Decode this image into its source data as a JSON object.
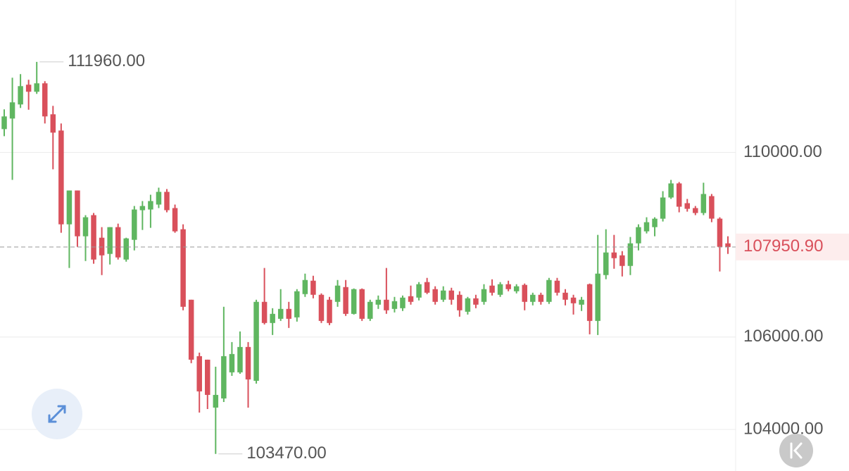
{
  "chart_data": {
    "type": "candlestick",
    "up_color": "#5fb660",
    "down_color": "#d9505b",
    "open": [
      110504,
      110733,
      111038,
      111466,
      111313,
      111496,
      110825,
      110473,
      108442,
      109175,
      108183,
      108641,
      108152,
      107801,
      108381,
      107679,
      108106,
      108748,
      108763,
      108870,
      109145,
      108794,
      108335,
      106809,
      105587,
      105511,
      104473,
      104671,
      105236,
      105236,
      105786,
      105053,
      106763,
      106305,
      106396,
      106610,
      106427,
      106931,
      107221,
      106916,
      106809,
      106763,
      107083,
      106503,
      107038,
      106396,
      106702,
      106809,
      106610,
      106625,
      106885,
      106855,
      107191,
      107038,
      106809,
      107008,
      106916,
      106549,
      106839,
      106763,
      107115,
      106916,
      107145,
      106992,
      107130,
      106763,
      106916,
      106763,
      107221,
      106961,
      106855,
      106702,
      107145,
      106350,
      107343,
      107832,
      107770,
      107541,
      108030,
      108290,
      108381,
      108564,
      109023,
      109328,
      108900,
      108794,
      108687,
      109053,
      108565,
      108030
    ],
    "high": [
      110932,
      111618,
      111695,
      111573,
      111960,
      111542,
      111008,
      110626,
      109175,
      109175,
      108641,
      108687,
      108381,
      108381,
      108457,
      108152,
      108839,
      108946,
      109083,
      109236,
      109206,
      108870,
      108442,
      106809,
      105663,
      105511,
      105358,
      106656,
      105892,
      106122,
      105892,
      106809,
      107496,
      106625,
      107038,
      106763,
      107038,
      107374,
      107328,
      106946,
      106870,
      107236,
      107236,
      107053,
      107053,
      106809,
      106900,
      107496,
      106870,
      106900,
      107115,
      107191,
      107282,
      107100,
      107100,
      107068,
      106992,
      106870,
      106916,
      107145,
      107251,
      107191,
      107221,
      107145,
      107160,
      106961,
      106961,
      107282,
      107282,
      107038,
      106916,
      106870,
      107160,
      108213,
      108335,
      108213,
      107862,
      108168,
      108442,
      108595,
      108595,
      109160,
      109404,
      109358,
      108992,
      108839,
      109343,
      109099,
      108595,
      108183
    ],
    "low": [
      110351,
      109404,
      110962,
      110924,
      111267,
      110626,
      109633,
      108259,
      107496,
      107954,
      107648,
      107588,
      107343,
      107572,
      107679,
      107633,
      107877,
      108320,
      108366,
      108794,
      108702,
      108259,
      106580,
      105434,
      104366,
      104442,
      103470,
      104595,
      105160,
      105205,
      104473,
      104992,
      106274,
      106045,
      106350,
      106198,
      106335,
      106870,
      106839,
      106305,
      106259,
      106656,
      106458,
      106488,
      106350,
      106350,
      106610,
      106503,
      106534,
      106565,
      106702,
      106794,
      106931,
      106703,
      106763,
      106702,
      106442,
      106488,
      106625,
      106702,
      106900,
      106870,
      106992,
      106946,
      106580,
      106687,
      106702,
      106718,
      106900,
      106687,
      106488,
      106565,
      106060,
      106045,
      107252,
      107480,
      107313,
      107343,
      107877,
      108244,
      108183,
      108503,
      108992,
      108702,
      108717,
      108641,
      108641,
      108488,
      107420,
      107801
    ],
    "close": [
      110779,
      111084,
      111435,
      111313,
      111496,
      110779,
      110428,
      108442,
      109175,
      108183,
      108595,
      107679,
      107770,
      108381,
      107725,
      108137,
      108763,
      108839,
      108946,
      109145,
      108748,
      108290,
      106656,
      105511,
      104824,
      104748,
      104748,
      105587,
      105633,
      105786,
      105083,
      106763,
      106305,
      106503,
      106610,
      106396,
      106992,
      107236,
      106916,
      106350,
      106305,
      107115,
      106503,
      107038,
      106396,
      106763,
      106809,
      106580,
      106778,
      106855,
      106763,
      107145,
      106961,
      106763,
      107008,
      106809,
      106580,
      106839,
      106702,
      107038,
      106961,
      107145,
      107038,
      107100,
      106763,
      106916,
      106763,
      107236,
      106961,
      106809,
      106732,
      106809,
      106350,
      107374,
      107832,
      107709,
      107541,
      108030,
      108381,
      108488,
      108564,
      109023,
      109328,
      108824,
      108778,
      108687,
      109099,
      108565,
      107954,
      107950.9
    ],
    "ylim": [
      103100,
      113300
    ],
    "yticks": [
      {
        "value": 110000,
        "label": "110000.00"
      },
      {
        "value": 106000,
        "label": "106000.00"
      },
      {
        "value": 104000,
        "label": "104000.00"
      }
    ],
    "grid": true,
    "last_price": {
      "value": 107950.9,
      "label": "107950.90"
    },
    "high_label": {
      "value": 111960,
      "label": "111960.00"
    },
    "low_label": {
      "value": 103470,
      "label": "103470.00"
    }
  }
}
